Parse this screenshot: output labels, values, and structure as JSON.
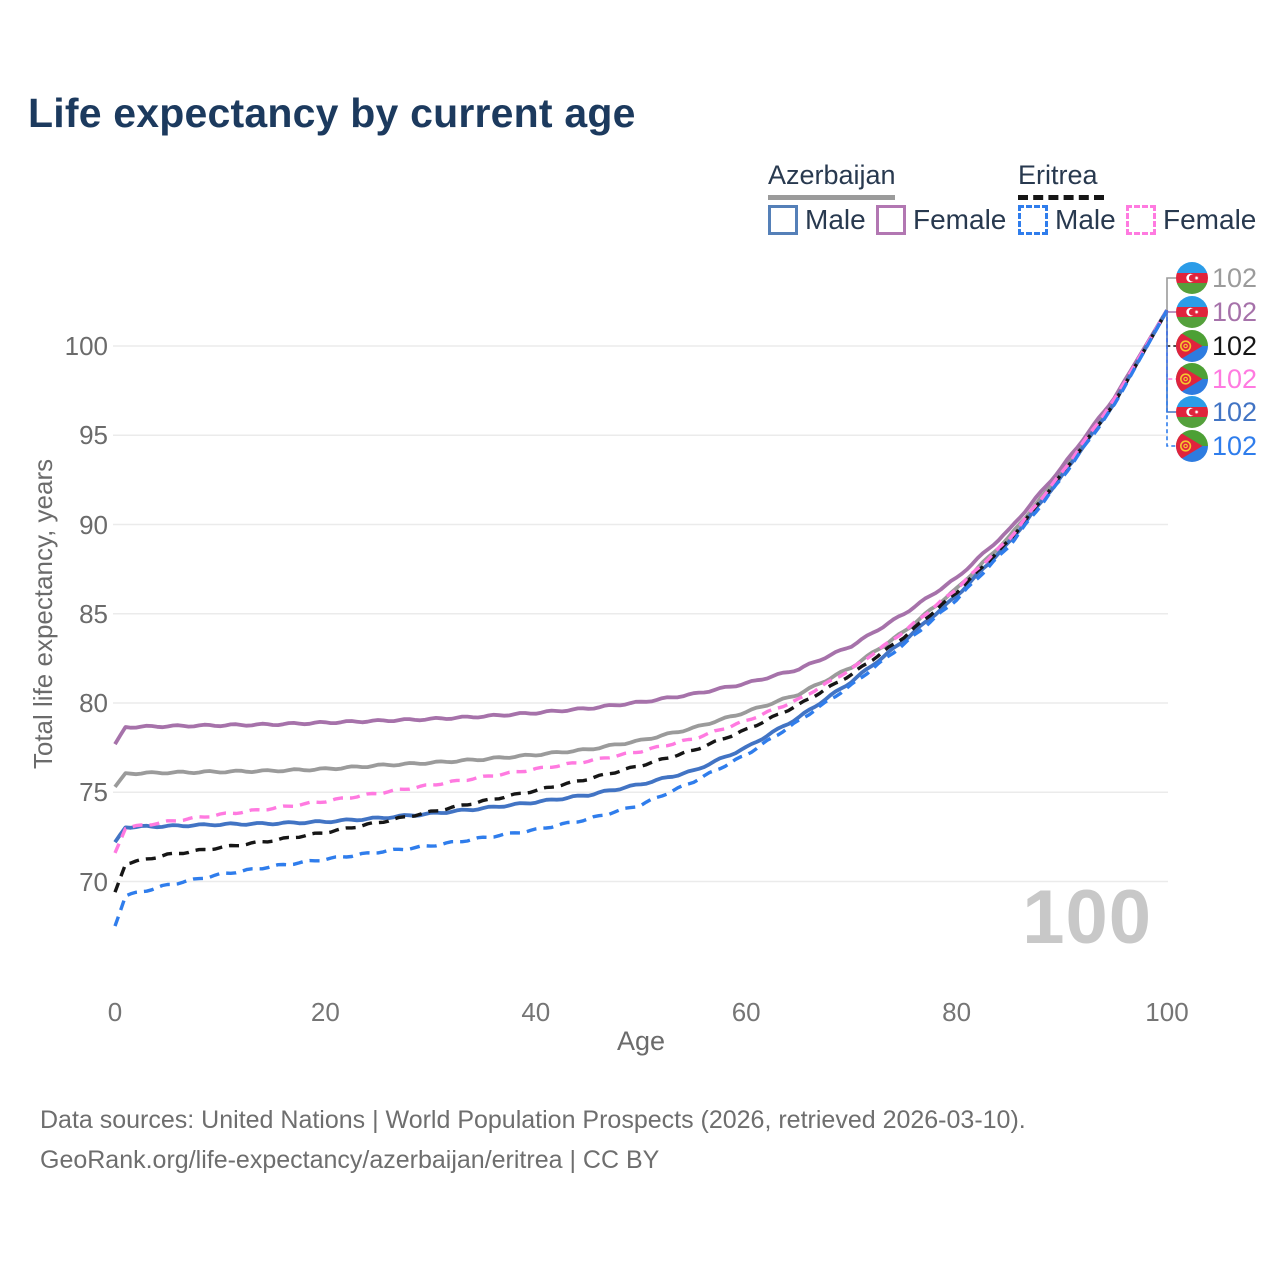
{
  "title": "Life expectancy by current age",
  "legend": {
    "groups": [
      {
        "country": "Azerbaijan",
        "line_style": "solid",
        "underline_color": "#9b9b9b",
        "items": [
          {
            "label": "Male",
            "color": "#5580b8",
            "dashed": false
          },
          {
            "label": "Female",
            "color": "#b277b2",
            "dashed": false
          }
        ]
      },
      {
        "country": "Eritrea",
        "line_style": "dashed",
        "underline_color": "#161616",
        "items": [
          {
            "label": "Male",
            "color": "#2f7dec",
            "dashed": true
          },
          {
            "label": "Female",
            "color": "#ff7ae0",
            "dashed": true
          }
        ]
      }
    ]
  },
  "chart_data": {
    "type": "line",
    "xlabel": "Age",
    "ylabel": "Total life expectancy, years",
    "xticks": [
      0,
      20,
      40,
      60,
      80,
      100
    ],
    "yticks": [
      70,
      75,
      80,
      85,
      90,
      95,
      100
    ],
    "xlim": [
      0,
      100
    ],
    "ylim": [
      67,
      103
    ],
    "grid": "horizontal-only",
    "grid_color": "#ebebeb",
    "hover_age_indicator": "100",
    "series": [
      {
        "name": "Azerbaijan — All",
        "country": "Azerbaijan",
        "flag": "az",
        "color": "#9b9b9b",
        "dashed": false,
        "row": 0,
        "end_label": "102",
        "points": [
          [
            0,
            75.3
          ],
          [
            1,
            76.05
          ],
          [
            5,
            76.1
          ],
          [
            10,
            76.15
          ],
          [
            15,
            76.2
          ],
          [
            20,
            76.3
          ],
          [
            25,
            76.5
          ],
          [
            30,
            76.65
          ],
          [
            35,
            76.85
          ],
          [
            40,
            77.1
          ],
          [
            45,
            77.4
          ],
          [
            50,
            77.9
          ],
          [
            55,
            78.6
          ],
          [
            60,
            79.5
          ],
          [
            65,
            80.5
          ],
          [
            70,
            82.0
          ],
          [
            75,
            84.0
          ],
          [
            80,
            86.4
          ],
          [
            85,
            89.3
          ],
          [
            90,
            92.9
          ],
          [
            95,
            96.9
          ],
          [
            100,
            102
          ]
        ]
      },
      {
        "name": "Azerbaijan — Female",
        "country": "Azerbaijan",
        "flag": "az",
        "color": "#a672aa",
        "dashed": false,
        "row": 1,
        "end_label": "102",
        "points": [
          [
            0,
            77.7
          ],
          [
            1,
            78.65
          ],
          [
            5,
            78.7
          ],
          [
            10,
            78.75
          ],
          [
            15,
            78.8
          ],
          [
            20,
            78.9
          ],
          [
            25,
            79.0
          ],
          [
            30,
            79.1
          ],
          [
            35,
            79.25
          ],
          [
            40,
            79.45
          ],
          [
            45,
            79.7
          ],
          [
            50,
            80.05
          ],
          [
            55,
            80.5
          ],
          [
            60,
            81.1
          ],
          [
            65,
            81.9
          ],
          [
            70,
            83.2
          ],
          [
            75,
            85.0
          ],
          [
            80,
            87.0
          ],
          [
            85,
            89.7
          ],
          [
            90,
            93.2
          ],
          [
            95,
            97.1
          ],
          [
            100,
            102
          ]
        ]
      },
      {
        "name": "Azerbaijan — Male",
        "country": "Azerbaijan",
        "flag": "az",
        "color": "#4274c4",
        "dashed": false,
        "row": 4,
        "end_label": "102",
        "points": [
          [
            0,
            72.2
          ],
          [
            1,
            73.05
          ],
          [
            5,
            73.1
          ],
          [
            10,
            73.2
          ],
          [
            15,
            73.25
          ],
          [
            20,
            73.35
          ],
          [
            25,
            73.55
          ],
          [
            30,
            73.8
          ],
          [
            35,
            74.1
          ],
          [
            40,
            74.45
          ],
          [
            45,
            74.85
          ],
          [
            50,
            75.45
          ],
          [
            55,
            76.2
          ],
          [
            60,
            77.5
          ],
          [
            65,
            79.2
          ],
          [
            70,
            81.2
          ],
          [
            75,
            83.5
          ],
          [
            80,
            86.0
          ],
          [
            85,
            89.0
          ],
          [
            90,
            92.7
          ],
          [
            95,
            96.8
          ],
          [
            100,
            102
          ]
        ]
      },
      {
        "name": "Eritrea — All",
        "country": "Eritrea",
        "flag": "er",
        "color": "#161616",
        "dashed": true,
        "row": 2,
        "end_label": "102",
        "points": [
          [
            0,
            69.4
          ],
          [
            1,
            71.0
          ],
          [
            5,
            71.5
          ],
          [
            10,
            71.9
          ],
          [
            15,
            72.3
          ],
          [
            20,
            72.75
          ],
          [
            25,
            73.3
          ],
          [
            30,
            73.9
          ],
          [
            35,
            74.5
          ],
          [
            40,
            75.1
          ],
          [
            45,
            75.75
          ],
          [
            50,
            76.5
          ],
          [
            55,
            77.35
          ],
          [
            60,
            78.5
          ],
          [
            65,
            79.9
          ],
          [
            70,
            81.6
          ],
          [
            75,
            83.7
          ],
          [
            80,
            86.2
          ],
          [
            85,
            89.1
          ],
          [
            90,
            92.8
          ],
          [
            95,
            96.8
          ],
          [
            100,
            102
          ]
        ]
      },
      {
        "name": "Eritrea — Female",
        "country": "Eritrea",
        "flag": "er",
        "color": "#ff7ae0",
        "dashed": true,
        "row": 3,
        "end_label": "102",
        "points": [
          [
            0,
            71.6
          ],
          [
            1,
            73.0
          ],
          [
            5,
            73.35
          ],
          [
            10,
            73.75
          ],
          [
            15,
            74.1
          ],
          [
            20,
            74.5
          ],
          [
            25,
            74.95
          ],
          [
            30,
            75.4
          ],
          [
            35,
            75.85
          ],
          [
            40,
            76.3
          ],
          [
            45,
            76.75
          ],
          [
            50,
            77.3
          ],
          [
            55,
            78.0
          ],
          [
            60,
            79.0
          ],
          [
            65,
            80.2
          ],
          [
            70,
            81.9
          ],
          [
            75,
            84.0
          ],
          [
            80,
            86.4
          ],
          [
            85,
            89.2
          ],
          [
            90,
            92.9
          ],
          [
            95,
            97.0
          ],
          [
            100,
            102
          ]
        ]
      },
      {
        "name": "Eritrea — Male",
        "country": "Eritrea",
        "flag": "er",
        "color": "#2f7dec",
        "dashed": true,
        "row": 5,
        "end_label": "102",
        "points": [
          [
            0,
            67.5
          ],
          [
            1,
            69.2
          ],
          [
            5,
            69.8
          ],
          [
            10,
            70.4
          ],
          [
            15,
            70.85
          ],
          [
            20,
            71.25
          ],
          [
            25,
            71.65
          ],
          [
            30,
            72.0
          ],
          [
            35,
            72.45
          ],
          [
            40,
            72.9
          ],
          [
            45,
            73.5
          ],
          [
            50,
            74.3
          ],
          [
            55,
            75.6
          ],
          [
            60,
            77.1
          ],
          [
            65,
            79.0
          ],
          [
            70,
            81.0
          ],
          [
            75,
            83.3
          ],
          [
            80,
            85.8
          ],
          [
            85,
            88.8
          ],
          [
            90,
            92.6
          ],
          [
            95,
            96.7
          ],
          [
            100,
            102
          ]
        ]
      }
    ]
  },
  "watermark": "100",
  "footer": {
    "line1": "Data sources: United Nations | World Population Prospects (2026, retrieved 2026-03-10).",
    "line2": "GeoRank.org/life-expectancy/azerbaijan/eritrea | CC BY"
  }
}
